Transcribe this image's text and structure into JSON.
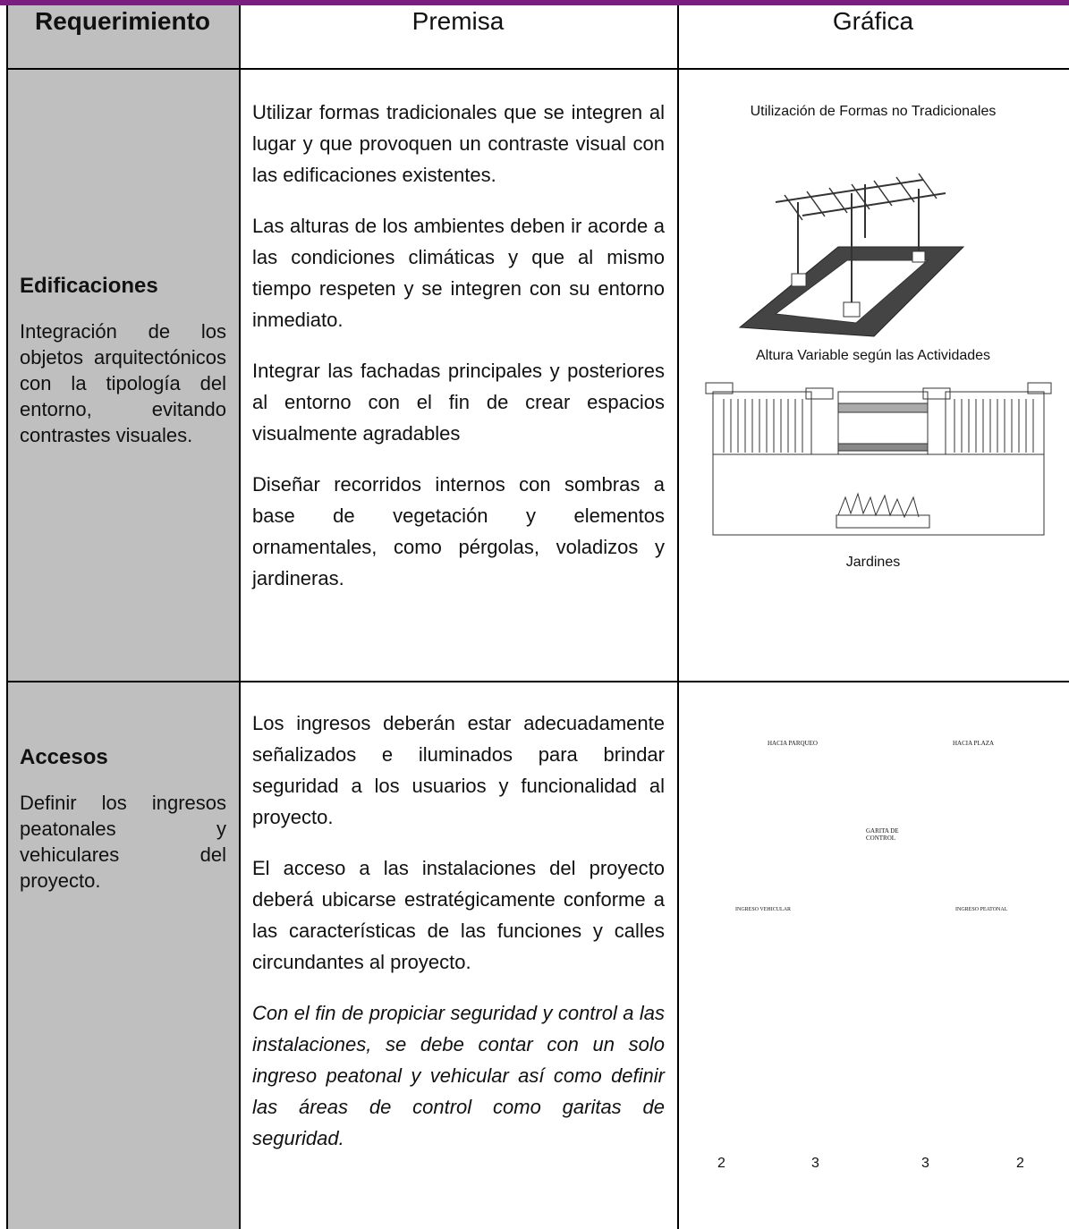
{
  "header": {
    "requerimiento": "Requerimiento",
    "premisa": "Premisa",
    "grafica": "Gráfica"
  },
  "rows": [
    {
      "title": "Edificaciones",
      "description": "Integración de los objetos arquitectónicos con la tipología del entorno, evitando contrastes visuales.",
      "premises": [
        "Utilizar formas tradicionales que se integren al lugar y que provoquen un contraste visual con las edificaciones existentes.",
        "Las alturas de los ambientes deben ir acorde a las condiciones climáticas y que al mismo tiempo respeten y se integren con su entorno inmediato.",
        "Integrar las fachadas principales y posteriores al entorno con el fin de crear espacios visualmente agradables",
        "Diseñar recorridos internos con sombras a base de vegetación y elementos ornamentales, como pérgolas, voladizos y jardineras."
      ],
      "graphic": {
        "captions": [
          "Utilización de Formas no Tradicionales",
          "Altura Variable según las Actividades",
          "Jardines"
        ]
      }
    },
    {
      "title": "Accesos",
      "description": "Definir los ingresos peatonales y vehiculares del proyecto.",
      "premises": [
        "Los ingresos deberán estar adecuadamente señalizados e iluminados para brindar seguridad a los usuarios y funcionalidad al proyecto.",
        "El acceso a las instalaciones del proyecto deberá ubicarse estratégicamente conforme a las características de las funciones y calles circundantes al proyecto.",
        "Con el fin de propiciar seguridad y control a las instalaciones,  se debe contar con un solo ingreso peatonal y vehicular así como definir las áreas de control como garitas de seguridad."
      ],
      "graphic": {
        "labels": [
          "HACIA PARQUEO",
          "HACIA PLAZA",
          "GARITA DE CONTROL",
          "INGRESO VEHICULAR",
          "INGRESO PEATONAL"
        ],
        "dimensions": [
          "2",
          "3",
          "3",
          "2"
        ]
      }
    }
  ]
}
